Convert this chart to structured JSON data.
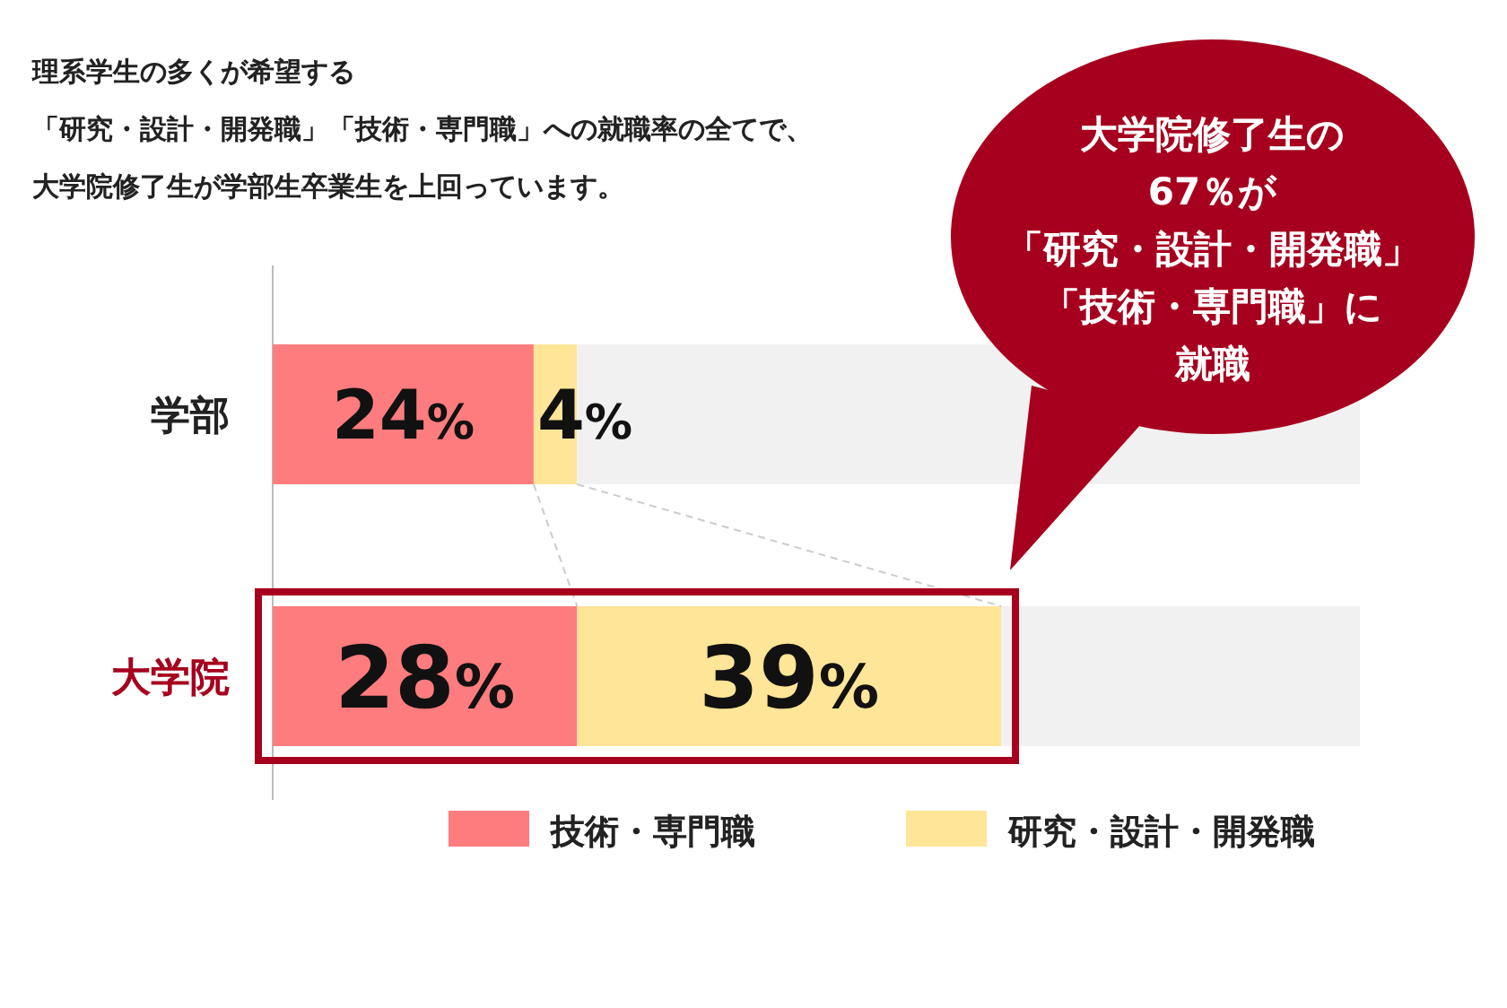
{
  "chart_data": {
    "type": "bar",
    "orientation": "horizontal",
    "stacked": true,
    "title": "理系学生の多くが希望する",
    "subtitle": "「研究・設計・開発職」「技術・専門職」への就職率の全てで、大学院修了生が学部生卒業生を上回っています。",
    "categories": [
      "学部",
      "大学院"
    ],
    "xlim": [
      0,
      100
    ],
    "tick_labels": "y",
    "legend": "bottom",
    "series": [
      {
        "name": "技術・専門職",
        "color": "#ff7c7e",
        "values": [
          24,
          28
        ],
        "value_labels": [
          "24%",
          "28%"
        ]
      },
      {
        "name": "研究・設計・開発職",
        "color": "#fee597",
        "values": [
          4,
          39
        ],
        "value_labels": [
          "4%",
          "39%"
        ]
      },
      {
        "color": "#f1f1f1",
        "values": [
          72,
          33
        ]
      }
    ],
    "annotations": [
      "大学院修了生の",
      "67％が",
      "「研究・設計・開発職」",
      "「技術・専門職」に",
      "就職"
    ]
  }
}
